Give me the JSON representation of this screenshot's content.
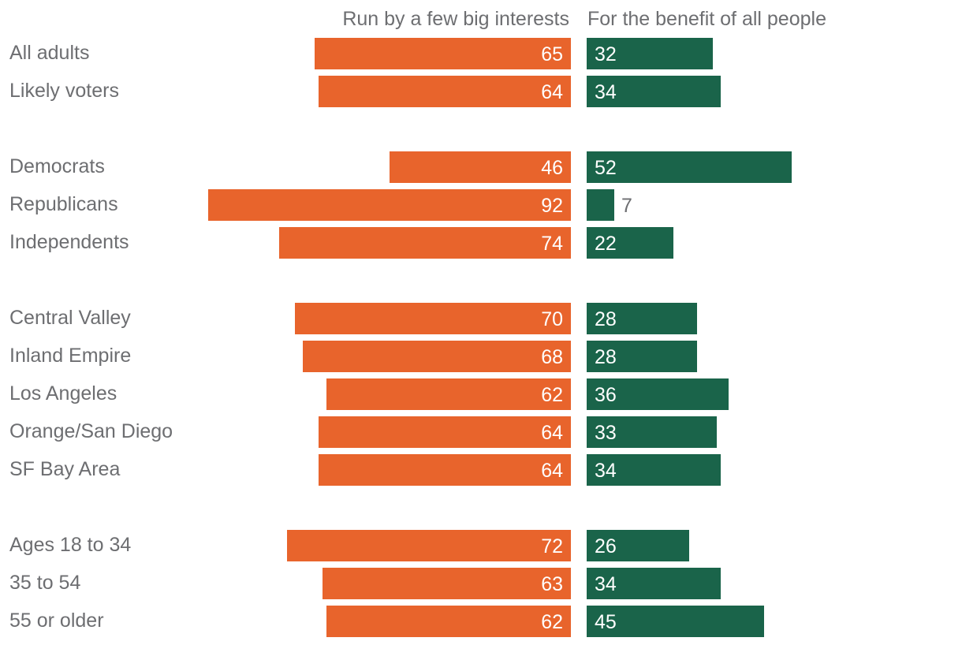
{
  "chart_data": {
    "type": "bar",
    "orientation": "horizontal-diverging",
    "series": [
      {
        "name": "Run by a few big interests",
        "color": "#e8642c",
        "values": [
          65,
          64,
          46,
          92,
          74,
          70,
          68,
          62,
          64,
          64,
          72,
          63,
          62
        ]
      },
      {
        "name": "For the benefit of all people",
        "color": "#1a644a",
        "values": [
          32,
          34,
          52,
          7,
          22,
          28,
          28,
          36,
          33,
          34,
          26,
          34,
          45
        ]
      }
    ],
    "groups": [
      [
        "All adults",
        "Likely voters"
      ],
      [
        "Democrats",
        "Republicans",
        "Independents"
      ],
      [
        "Central Valley",
        "Inland Empire",
        "Los Angeles",
        "Orange/San Diego",
        "SF Bay Area"
      ],
      [
        "Ages 18 to 34",
        "35 to 54",
        "55 or older"
      ]
    ],
    "categories": [
      "All adults",
      "Likely voters",
      "Democrats",
      "Republicans",
      "Independents",
      "Central Valley",
      "Inland Empire",
      "Los Angeles",
      "Orange/San Diego",
      "SF Bay Area",
      "Ages 18 to 34",
      "35 to 54",
      "55 or older"
    ],
    "value_unit": "percent",
    "title": "",
    "xlabel": "",
    "ylabel": "",
    "grid": false,
    "legend_position": "top"
  }
}
